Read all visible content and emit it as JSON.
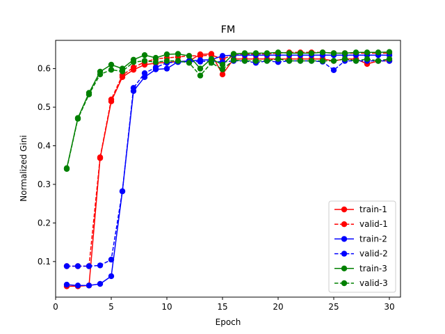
{
  "chart_data": {
    "type": "line",
    "title": "FM",
    "xlabel": "Epoch",
    "ylabel": "Normalized Gini",
    "xlim": [
      0,
      31
    ],
    "ylim": [
      0.0078,
      0.6732
    ],
    "xticks": [
      0,
      5,
      10,
      15,
      20,
      25,
      30
    ],
    "yticks": [
      0.1,
      0.2,
      0.3,
      0.4,
      0.5,
      0.6
    ],
    "ytick_labels": [
      "0.1",
      "0.2",
      "0.3",
      "0.4",
      "0.5",
      "0.6"
    ],
    "grid": false,
    "legend_position": "lower-right",
    "x": [
      1,
      2,
      3,
      4,
      5,
      6,
      7,
      8,
      9,
      10,
      11,
      12,
      13,
      14,
      15,
      16,
      17,
      18,
      19,
      20,
      21,
      22,
      23,
      24,
      25,
      26,
      27,
      28,
      29,
      30
    ],
    "series": [
      {
        "name": "train-1",
        "color": "#ff0000",
        "dash": "solid",
        "values": [
          0.036,
          0.036,
          0.038,
          0.368,
          0.515,
          0.578,
          0.597,
          0.61,
          0.614,
          0.616,
          0.618,
          0.62,
          0.637,
          0.638,
          0.585,
          0.625,
          0.625,
          0.625,
          0.625,
          0.625,
          0.625,
          0.625,
          0.625,
          0.625,
          0.62,
          0.625,
          0.625,
          0.612,
          0.62,
          0.62
        ]
      },
      {
        "name": "valid-1",
        "color": "#ff0000",
        "dash": "dashed",
        "values": [
          0.088,
          0.088,
          0.088,
          0.37,
          0.52,
          0.583,
          0.603,
          0.617,
          0.625,
          0.628,
          0.63,
          0.633,
          0.633,
          0.635,
          0.625,
          0.635,
          0.637,
          0.638,
          0.638,
          0.64,
          0.642,
          0.642,
          0.642,
          0.642,
          0.64,
          0.64,
          0.64,
          0.64,
          0.64,
          0.64
        ]
      },
      {
        "name": "train-2",
        "color": "#0000ff",
        "dash": "solid",
        "values": [
          0.04,
          0.038,
          0.038,
          0.042,
          0.062,
          0.282,
          0.542,
          0.578,
          0.598,
          0.6,
          0.618,
          0.62,
          0.622,
          0.623,
          0.633,
          0.635,
          0.635,
          0.635,
          0.635,
          0.635,
          0.635,
          0.635,
          0.635,
          0.635,
          0.635,
          0.635,
          0.635,
          0.635,
          0.635,
          0.635
        ]
      },
      {
        "name": "valid-2",
        "color": "#0000ff",
        "dash": "dashed",
        "values": [
          0.088,
          0.088,
          0.088,
          0.09,
          0.105,
          0.282,
          0.55,
          0.588,
          0.603,
          0.615,
          0.617,
          0.618,
          0.618,
          0.62,
          0.617,
          0.62,
          0.62,
          0.615,
          0.62,
          0.617,
          0.62,
          0.62,
          0.62,
          0.618,
          0.596,
          0.62,
          0.62,
          0.62,
          0.62,
          0.62
        ]
      },
      {
        "name": "train-3",
        "color": "#008000",
        "dash": "solid",
        "values": [
          0.342,
          0.472,
          0.537,
          0.592,
          0.61,
          0.6,
          0.623,
          0.635,
          0.628,
          0.637,
          0.638,
          0.633,
          0.6,
          0.625,
          0.61,
          0.638,
          0.64,
          0.64,
          0.64,
          0.642,
          0.64,
          0.64,
          0.64,
          0.642,
          0.64,
          0.64,
          0.642,
          0.642,
          0.642,
          0.643
        ]
      },
      {
        "name": "valid-3",
        "color": "#008000",
        "dash": "dashed",
        "values": [
          0.34,
          0.47,
          0.533,
          0.585,
          0.597,
          0.593,
          0.617,
          0.62,
          0.617,
          0.62,
          0.62,
          0.615,
          0.582,
          0.615,
          0.598,
          0.622,
          0.62,
          0.62,
          0.62,
          0.625,
          0.62,
          0.62,
          0.62,
          0.62,
          0.62,
          0.625,
          0.62,
          0.625,
          0.62,
          0.625
        ]
      }
    ]
  }
}
